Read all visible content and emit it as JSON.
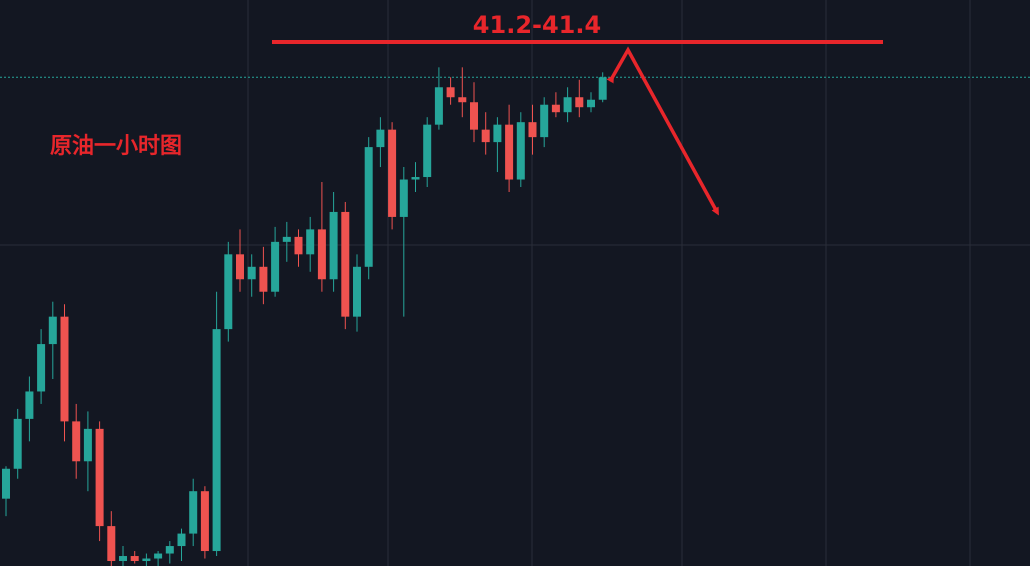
{
  "chart_data": {
    "type": "candlestick",
    "title": "原油一小时图",
    "annotation": "41.2-41.4",
    "ylim": [
      39.2,
      41.47
    ],
    "up_color": "#26a69a",
    "down_color": "#ef5350",
    "open": [
      39.47,
      39.59,
      39.79,
      39.9,
      40.09,
      40.2,
      39.78,
      39.62,
      39.75,
      39.36,
      39.22,
      39.24,
      39.22,
      39.23,
      39.25,
      39.28,
      39.33,
      39.5,
      39.26,
      40.15,
      40.45,
      40.35,
      40.4,
      40.3,
      40.5,
      40.52,
      40.45,
      40.55,
      40.35,
      40.62,
      40.2,
      40.4,
      40.88,
      40.95,
      40.6,
      40.75,
      40.76,
      40.97,
      41.12,
      41.08,
      41.06,
      40.95,
      40.9,
      40.97,
      40.75,
      40.98,
      40.92,
      41.05,
      41.02,
      41.08,
      41.04,
      41.07
    ],
    "high": [
      39.6,
      39.83,
      39.96,
      40.15,
      40.26,
      40.25,
      39.85,
      39.82,
      39.78,
      39.42,
      39.28,
      39.26,
      39.25,
      39.26,
      39.3,
      39.35,
      39.55,
      39.52,
      40.3,
      40.5,
      40.55,
      40.45,
      40.48,
      40.56,
      40.58,
      40.55,
      40.6,
      40.74,
      40.7,
      40.66,
      40.45,
      40.92,
      41.0,
      40.98,
      40.8,
      40.82,
      41.0,
      41.2,
      41.16,
      41.2,
      41.14,
      41.02,
      41.0,
      41.05,
      41.02,
      41.05,
      41.08,
      41.1,
      41.12,
      41.15,
      41.1,
      41.18
    ],
    "low": [
      39.4,
      39.55,
      39.7,
      39.85,
      39.95,
      39.7,
      39.55,
      39.5,
      39.3,
      39.2,
      39.2,
      39.21,
      39.2,
      39.2,
      39.21,
      39.22,
      39.28,
      39.23,
      39.24,
      40.1,
      40.3,
      40.28,
      40.25,
      40.28,
      40.42,
      40.4,
      40.38,
      40.3,
      40.3,
      40.15,
      40.14,
      40.35,
      40.8,
      40.55,
      40.2,
      40.7,
      40.72,
      40.95,
      41.05,
      41.0,
      40.9,
      40.85,
      40.78,
      40.7,
      40.72,
      40.85,
      40.88,
      41.0,
      40.98,
      41.0,
      41.02,
      41.06
    ],
    "close": [
      39.59,
      39.79,
      39.9,
      40.09,
      40.2,
      39.78,
      39.62,
      39.75,
      39.36,
      39.22,
      39.24,
      39.22,
      39.23,
      39.25,
      39.28,
      39.33,
      39.5,
      39.26,
      40.15,
      40.45,
      40.35,
      40.4,
      40.3,
      40.5,
      40.52,
      40.45,
      40.55,
      40.35,
      40.62,
      40.2,
      40.4,
      40.88,
      40.95,
      40.6,
      40.75,
      40.76,
      40.97,
      41.12,
      41.08,
      41.06,
      40.95,
      40.9,
      40.97,
      40.75,
      40.98,
      40.92,
      41.05,
      41.02,
      41.08,
      41.04,
      41.07,
      41.16
    ]
  }
}
